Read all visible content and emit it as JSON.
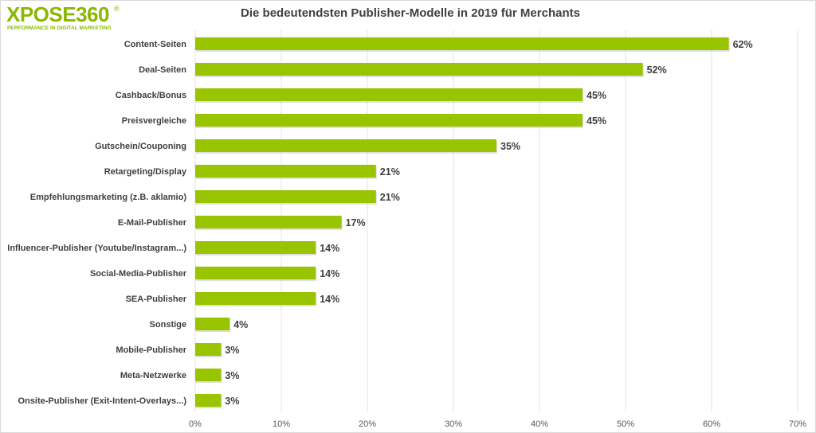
{
  "logo": {
    "text": "XPOSE360",
    "registered": "®",
    "tagline": "PERFORMANCE IN DIGITAL MARKETING"
  },
  "colors": {
    "bar": "#99c400",
    "grid": "#e0e0e0",
    "text": "#404040",
    "logo": "#8ab800"
  },
  "chart_data": {
    "type": "bar",
    "orientation": "horizontal",
    "title": "Die bedeutendsten Publisher-Modelle in 2019 für Merchants",
    "categories": [
      "Content-Seiten",
      "Deal-Seiten",
      "Cashback/Bonus",
      "Preisvergleiche",
      "Gutschein/Couponing",
      "Retargeting/Display",
      "Empfehlungsmarketing (z.B. aklamio)",
      "E-Mail-Publisher",
      "Influencer-Publisher (Youtube/Instagram...)",
      "Social-Media-Publisher",
      "SEA-Publisher",
      "Sonstige",
      "Mobile-Publisher",
      "Meta-Netzwerke",
      "Onsite-Publisher (Exit-Intent-Overlays...)"
    ],
    "values": [
      62,
      52,
      45,
      45,
      35,
      21,
      21,
      17,
      14,
      14,
      14,
      4,
      3,
      3,
      3
    ],
    "value_labels": [
      "62%",
      "52%",
      "45%",
      "45%",
      "35%",
      "21%",
      "21%",
      "17%",
      "14%",
      "14%",
      "14%",
      "4%",
      "3%",
      "3%",
      "3%"
    ],
    "xlim": [
      0,
      70
    ],
    "xticks": [
      0,
      10,
      20,
      30,
      40,
      50,
      60,
      70
    ],
    "xtick_labels": [
      "0%",
      "10%",
      "20%",
      "30%",
      "40%",
      "50%",
      "60%",
      "70%"
    ],
    "grid": true,
    "legend": "none"
  }
}
